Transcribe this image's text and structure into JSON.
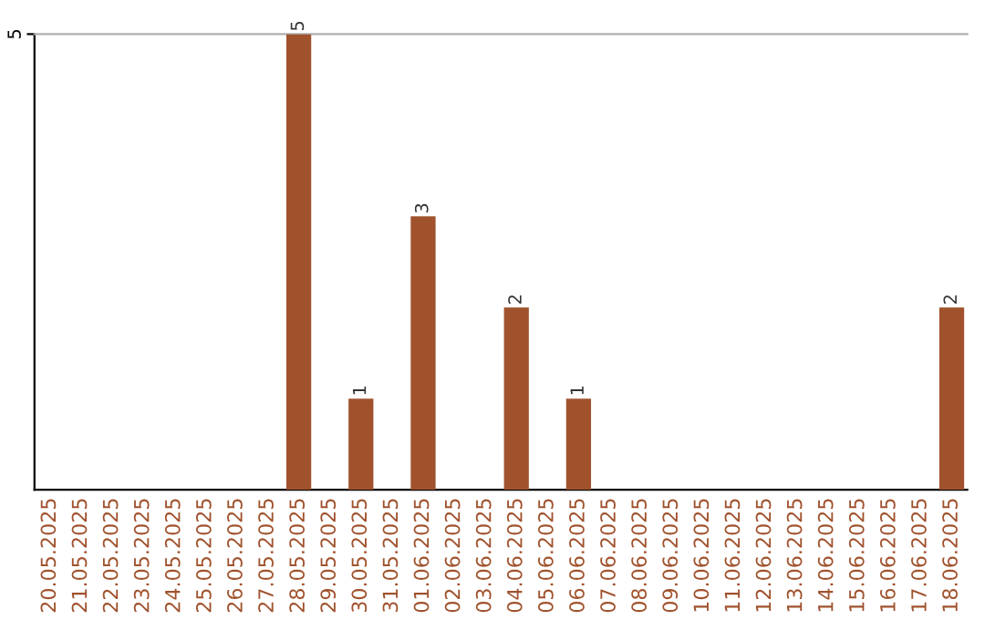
{
  "chart_data": {
    "type": "bar",
    "categories": [
      "20.05.2025",
      "21.05.2025",
      "22.05.2025",
      "23.05.2025",
      "24.05.2025",
      "25.05.2025",
      "26.05.2025",
      "27.05.2025",
      "28.05.2025",
      "29.05.2025",
      "30.05.2025",
      "31.05.2025",
      "01.06.2025",
      "02.06.2025",
      "03.06.2025",
      "04.06.2025",
      "05.06.2025",
      "06.06.2025",
      "07.06.2025",
      "08.06.2025",
      "09.06.2025",
      "10.06.2025",
      "11.06.2025",
      "12.06.2025",
      "13.06.2025",
      "14.06.2025",
      "15.06.2025",
      "16.06.2025",
      "17.06.2025",
      "18.06.2025"
    ],
    "values": [
      0,
      0,
      0,
      0,
      0,
      0,
      0,
      0,
      5,
      0,
      1,
      0,
      3,
      0,
      0,
      2,
      0,
      1,
      0,
      0,
      0,
      0,
      0,
      0,
      0,
      0,
      0,
      0,
      0,
      2
    ],
    "value_labels": [
      null,
      null,
      null,
      null,
      null,
      null,
      null,
      null,
      "5",
      null,
      "1",
      null,
      "3",
      null,
      null,
      "2",
      null,
      "1",
      null,
      null,
      null,
      null,
      null,
      null,
      null,
      null,
      null,
      null,
      null,
      "2"
    ],
    "color": "#a0522d",
    "ylim": [
      0,
      5
    ],
    "yticks": [
      5
    ]
  }
}
